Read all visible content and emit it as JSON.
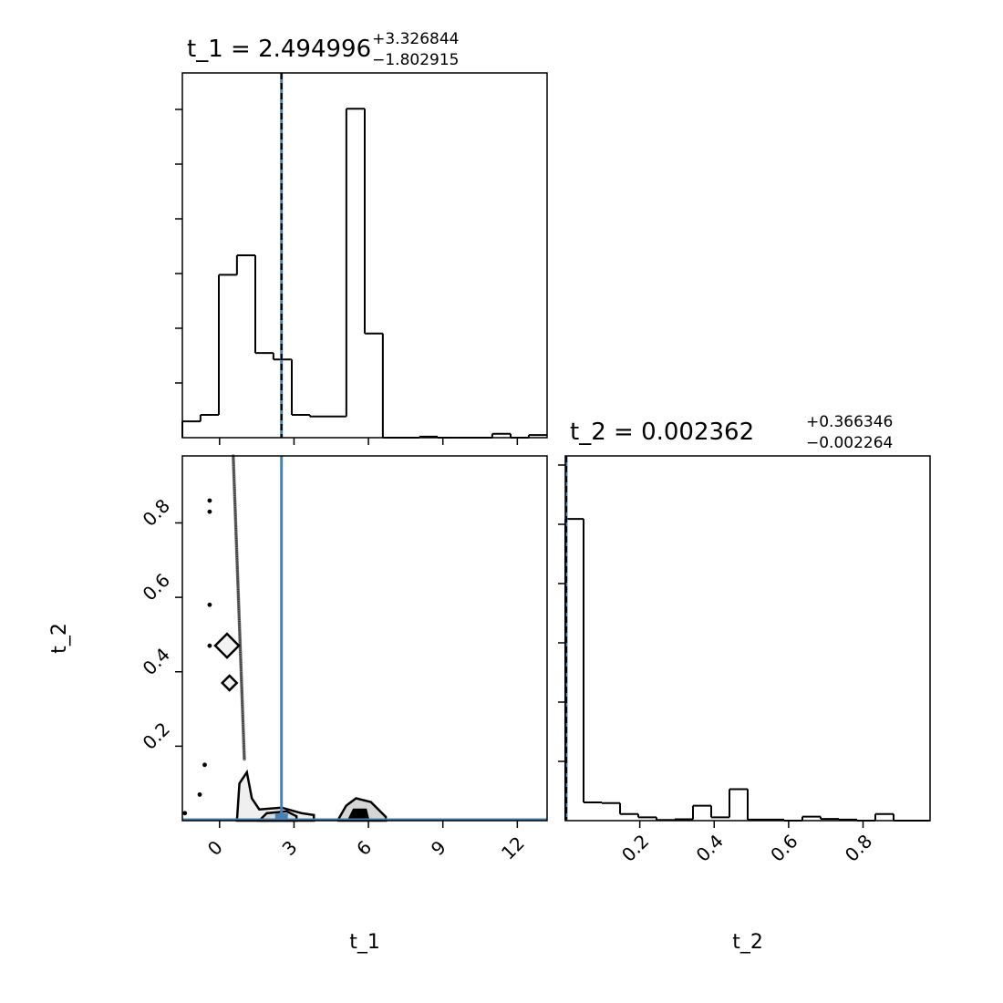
{
  "chart_data": [
    {
      "type": "bar",
      "panel": "t_1 marginal histogram",
      "title": {
        "prefix": "t_1 = ",
        "value": "2.494996",
        "plus": "+3.326844",
        "minus": "−1.802915"
      },
      "xlim": [
        -1.5,
        13.2
      ],
      "ylim": [
        0,
        100
      ],
      "xticks": [
        0,
        3,
        6,
        9,
        12
      ],
      "bin_edges": [
        -1.5,
        -0.77,
        -0.03,
        0.7,
        1.44,
        2.17,
        2.91,
        3.64,
        4.38,
        5.11,
        5.85,
        6.58,
        7.32,
        8.05,
        8.79,
        9.52,
        10.26,
        10.99,
        11.73,
        12.46,
        13.2
      ],
      "counts": [
        5,
        7,
        50,
        56,
        26,
        24,
        7,
        6.5,
        6.5,
        101,
        32,
        0,
        0,
        0.3,
        0,
        0,
        0,
        1.2,
        0,
        0.8
      ],
      "median_line": 2.495,
      "truth_line": 2.495,
      "colors": {
        "step": "#000000",
        "truth": "#4682b4"
      }
    },
    {
      "type": "scatter",
      "panel": "t_1 vs t_2 2D density",
      "xlabel": "",
      "ylabel": "t_2",
      "xlim": [
        -1.5,
        13.2
      ],
      "ylim": [
        0,
        0.98
      ],
      "xticks": [
        0,
        3,
        6,
        9,
        12
      ],
      "yticks": [
        0.2,
        0.4,
        0.6,
        0.8
      ],
      "points": [
        [
          -1.4,
          0.02
        ],
        [
          -0.8,
          0.07
        ],
        [
          -0.6,
          0.15
        ],
        [
          -0.4,
          0.47
        ],
        [
          -0.4,
          0.58
        ],
        [
          -0.4,
          0.83
        ],
        [
          -0.4,
          0.86
        ]
      ],
      "contour_peaks": [
        [
          0.3,
          0.47
        ],
        [
          0.4,
          0.37
        ],
        [
          5.6,
          0.02
        ]
      ],
      "truth": [
        2.495,
        0.002362
      ],
      "colors": {
        "contour": "#000000",
        "truth": "#4682b4"
      }
    },
    {
      "type": "bar",
      "panel": "t_2 marginal histogram",
      "title": {
        "prefix": "t_2 = ",
        "value": "0.002362",
        "plus": "+0.366346",
        "minus": "−0.002264"
      },
      "xlabel": "t_2",
      "xlim": [
        0,
        0.98
      ],
      "ylim": [
        0,
        100
      ],
      "xticks": [
        0.2,
        0.4,
        0.6,
        0.8
      ],
      "bin_edges": [
        0.0,
        0.049,
        0.098,
        0.147,
        0.196,
        0.245,
        0.294,
        0.343,
        0.392,
        0.441,
        0.49,
        0.539,
        0.588,
        0.637,
        0.686,
        0.735,
        0.784,
        0.833,
        0.882,
        0.931,
        0.98
      ],
      "counts": [
        91,
        5.5,
        5.3,
        2,
        1,
        0.2,
        0.4,
        4.5,
        1,
        9.5,
        0.3,
        0.3,
        0,
        1.2,
        0.5,
        0.3,
        0,
        2,
        0,
        0
      ],
      "median_line": 0.002362,
      "truth_line": 0.002362,
      "colors": {
        "step": "#000000",
        "truth": "#4682b4"
      }
    }
  ],
  "labels": {
    "x_t1": "t_1",
    "x_t2": "t_2",
    "y_t2": "t_2"
  }
}
